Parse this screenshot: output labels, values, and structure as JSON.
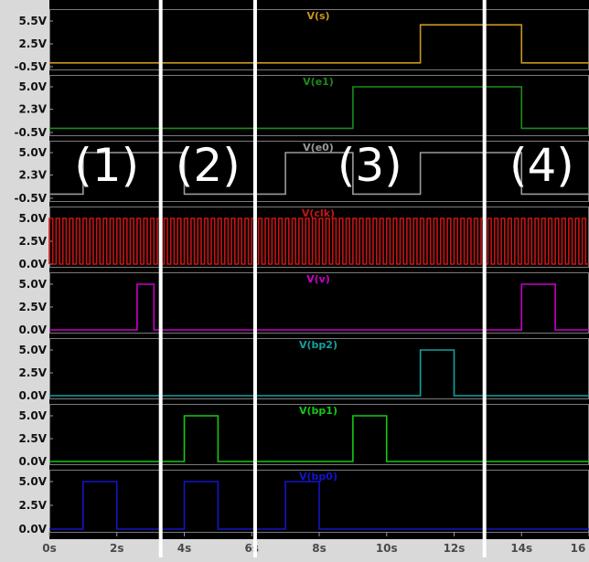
{
  "chart_data": {
    "type": "line",
    "xlim": [
      0,
      16
    ],
    "x_ticks": [
      {
        "value": 0,
        "label": "0s"
      },
      {
        "value": 2,
        "label": "2s"
      },
      {
        "value": 4,
        "label": "4s"
      },
      {
        "value": 6,
        "label": "6s"
      },
      {
        "value": 8,
        "label": "8s"
      },
      {
        "value": 10,
        "label": "10s"
      },
      {
        "value": 12,
        "label": "12s"
      },
      {
        "value": 14,
        "label": "14s"
      },
      {
        "value": 16,
        "label": "16"
      }
    ],
    "region_lines_x": [
      3.3,
      6.1,
      12.9
    ],
    "regions": [
      {
        "label": "(1)",
        "x": 1.7
      },
      {
        "label": "(2)",
        "x": 4.7
      },
      {
        "label": "(3)",
        "x": 9.5
      },
      {
        "label": "(4)",
        "x": 14.6
      }
    ],
    "panels": [
      {
        "title": "V(s)",
        "color": "#c8961e",
        "yticks": [
          {
            "v": 5.5,
            "label": "5.5V"
          },
          {
            "v": 2.5,
            "label": "2.5V"
          },
          {
            "v": -0.5,
            "label": "-0.5V"
          }
        ],
        "series": {
          "name": "V(s)",
          "x": [
            0,
            11,
            11,
            14,
            14,
            16
          ],
          "y": [
            0,
            0,
            5,
            5,
            0,
            0
          ]
        }
      },
      {
        "title": "V(e1)",
        "color": "#1a8c1a",
        "yticks": [
          {
            "v": 5.0,
            "label": "5.0V"
          },
          {
            "v": 2.3,
            "label": "2.3V"
          },
          {
            "v": -0.5,
            "label": "-0.5V"
          }
        ],
        "series": {
          "name": "V(e1)",
          "x": [
            0,
            9,
            9,
            14,
            14,
            16
          ],
          "y": [
            0,
            0,
            5,
            5,
            0,
            0
          ]
        }
      },
      {
        "title": "V(e0)",
        "color": "#9a9a9a",
        "yticks": [
          {
            "v": 5.0,
            "label": "5.0V"
          },
          {
            "v": 2.3,
            "label": "2.3V"
          },
          {
            "v": -0.5,
            "label": "-0.5V"
          }
        ],
        "series": {
          "name": "V(e0)",
          "x": [
            0,
            1,
            1,
            4,
            4,
            7,
            7,
            9,
            9,
            11,
            11,
            14,
            14,
            16
          ],
          "y": [
            0,
            0,
            5,
            5,
            0,
            0,
            5,
            5,
            0,
            0,
            5,
            5,
            0,
            0
          ]
        }
      },
      {
        "title": "V(clk)",
        "color": "#c81414",
        "yticks": [
          {
            "v": 5.0,
            "label": "5.0V"
          },
          {
            "v": 2.5,
            "label": "2.5V"
          },
          {
            "v": 0.0,
            "label": "0.0V"
          }
        ],
        "series": {
          "name": "V(clk)",
          "clock_period": 0.2,
          "x": [
            0,
            16
          ],
          "y": [
            0,
            5
          ]
        }
      },
      {
        "title": "V(v)",
        "color": "#c800c8",
        "yticks": [
          {
            "v": 5.0,
            "label": "5.0V"
          },
          {
            "v": 2.5,
            "label": "2.5V"
          },
          {
            "v": 0.0,
            "label": "0.0V"
          }
        ],
        "series": {
          "name": "V(v)",
          "x": [
            0,
            2.6,
            2.6,
            3.1,
            3.1,
            14,
            14,
            15,
            15,
            16
          ],
          "y": [
            0,
            0,
            5,
            5,
            0,
            0,
            5,
            5,
            0,
            0
          ]
        }
      },
      {
        "title": "V(bp2)",
        "color": "#14a0a0",
        "yticks": [
          {
            "v": 5.0,
            "label": "5.0V"
          },
          {
            "v": 2.5,
            "label": "2.5V"
          },
          {
            "v": 0.0,
            "label": "0.0V"
          }
        ],
        "series": {
          "name": "V(bp2)",
          "x": [
            0,
            11,
            11,
            12,
            12,
            16
          ],
          "y": [
            0,
            0,
            5,
            5,
            0,
            0
          ]
        }
      },
      {
        "title": "V(bp1)",
        "color": "#14c814",
        "yticks": [
          {
            "v": 5.0,
            "label": "5.0V"
          },
          {
            "v": 2.5,
            "label": "2.5V"
          },
          {
            "v": 0.0,
            "label": "0.0V"
          }
        ],
        "series": {
          "name": "V(bp1)",
          "x": [
            0,
            4,
            4,
            5,
            5,
            9,
            9,
            10,
            10,
            16
          ],
          "y": [
            0,
            0,
            5,
            5,
            0,
            0,
            5,
            5,
            0,
            0
          ]
        }
      },
      {
        "title": "V(bp0)",
        "color": "#1414c8",
        "yticks": [
          {
            "v": 5.0,
            "label": "5.0V"
          },
          {
            "v": 2.5,
            "label": "2.5V"
          },
          {
            "v": 0.0,
            "label": "0.0V"
          }
        ],
        "series": {
          "name": "V(bp0)",
          "x": [
            0,
            1,
            1,
            2,
            2,
            4,
            4,
            5,
            5,
            7,
            7,
            8,
            8,
            16
          ],
          "y": [
            0,
            0,
            5,
            5,
            0,
            0,
            5,
            5,
            0,
            0,
            5,
            5,
            0,
            0
          ]
        }
      }
    ]
  }
}
